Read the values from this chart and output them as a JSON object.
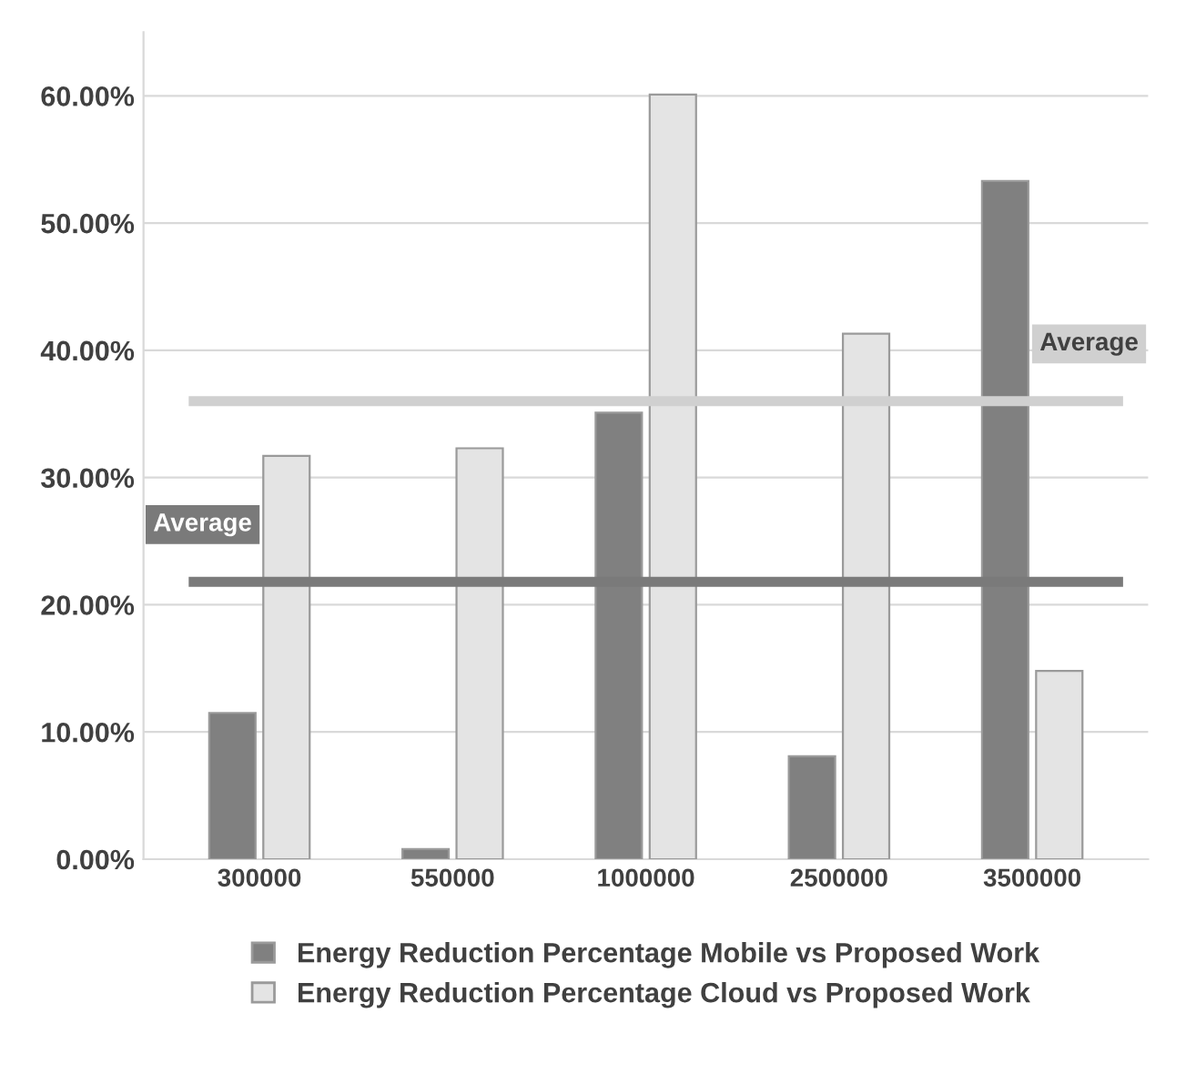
{
  "chart_data": {
    "type": "bar",
    "categories": [
      "300000",
      "550000",
      "1000000",
      "2500000",
      "3500000"
    ],
    "series": [
      {
        "name": "Energy Reduction Percentage Mobile vs Proposed Work",
        "color": "#808080",
        "values": [
          11.5,
          0.8,
          35.1,
          8.1,
          53.3
        ]
      },
      {
        "name": "Energy Reduction Percentage Cloud vs Proposed Work",
        "color": "#e4e4e4",
        "values": [
          31.7,
          32.3,
          60.1,
          41.3,
          14.8
        ]
      }
    ],
    "ylim": [
      0,
      65
    ],
    "yticks": [
      {
        "value": 0,
        "label": "0.00%"
      },
      {
        "value": 10,
        "label": "10.00%"
      },
      {
        "value": 20,
        "label": "20.00%"
      },
      {
        "value": 30,
        "label": "30.00%"
      },
      {
        "value": 40,
        "label": "40.00%"
      },
      {
        "value": 50,
        "label": "50.00%"
      },
      {
        "value": 60,
        "label": "60.00%"
      }
    ],
    "ref_lines": [
      {
        "axis": "y",
        "value": 21.8,
        "label": "Average",
        "color": "#7a7a7a"
      },
      {
        "axis": "y",
        "value": 36.0,
        "label": "Average",
        "color": "#d0d0d0"
      }
    ],
    "grid": "y",
    "legend": "bottom"
  }
}
